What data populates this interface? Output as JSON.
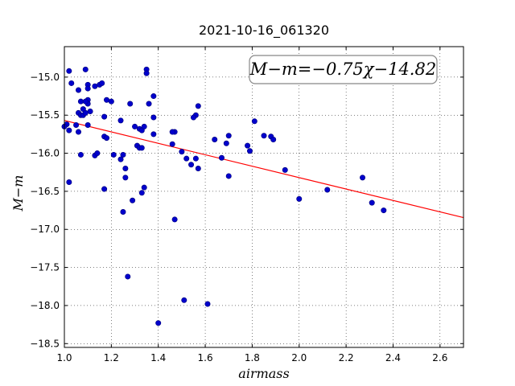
{
  "chart_data": {
    "type": "scatter",
    "title": "2021-10-16_061320",
    "xlabel": "airmass",
    "ylabel": "M−m",
    "xlim": [
      1.0,
      2.7
    ],
    "ylim": [
      -18.55,
      -14.6
    ],
    "y_inverted": true,
    "grid": true,
    "x_ticks": [
      1.0,
      1.2,
      1.4,
      1.6,
      1.8,
      2.0,
      2.2,
      2.4,
      2.6
    ],
    "x_tick_labels": [
      "1.0",
      "1.2",
      "1.4",
      "1.6",
      "1.8",
      "2.0",
      "2.2",
      "2.4",
      "2.6"
    ],
    "y_ticks": [
      -15.0,
      -15.5,
      -16.0,
      -16.5,
      -17.0,
      -17.5,
      -18.0,
      -18.5
    ],
    "y_tick_labels": [
      "−15.0",
      "−15.5",
      "−16.0",
      "−16.5",
      "−17.0",
      "−17.5",
      "−18.0",
      "−18.5"
    ],
    "annotation": "M−m=−0.75χ−14.82",
    "point_color": "#0000cc",
    "fit_color": "#ff0000",
    "fit": {
      "slope": -0.75,
      "intercept": -14.82
    },
    "points": [
      [
        1.02,
        -14.92
      ],
      [
        1.09,
        -14.9
      ],
      [
        1.15,
        -15.1
      ],
      [
        1.16,
        -15.08
      ],
      [
        1.03,
        -15.08
      ],
      [
        1.35,
        -14.9
      ],
      [
        1.35,
        -14.95
      ],
      [
        1.1,
        -15.1
      ],
      [
        1.1,
        -15.15
      ],
      [
        1.06,
        -15.17
      ],
      [
        1.13,
        -15.12
      ],
      [
        1.38,
        -15.25
      ],
      [
        1.1,
        -15.3
      ],
      [
        1.1,
        -15.35
      ],
      [
        1.07,
        -15.32
      ],
      [
        1.09,
        -15.32
      ],
      [
        1.18,
        -15.3
      ],
      [
        1.2,
        -15.32
      ],
      [
        1.28,
        -15.35
      ],
      [
        1.36,
        -15.35
      ],
      [
        1.57,
        -15.38
      ],
      [
        1.08,
        -15.42
      ],
      [
        1.11,
        -15.45
      ],
      [
        1.06,
        -15.47
      ],
      [
        1.07,
        -15.5
      ],
      [
        1.08,
        -15.5
      ],
      [
        1.09,
        -15.47
      ],
      [
        1.17,
        -15.52
      ],
      [
        1.38,
        -15.53
      ],
      [
        1.56,
        -15.5
      ],
      [
        1.55,
        -15.53
      ],
      [
        1.24,
        -15.57
      ],
      [
        1.01,
        -15.62
      ],
      [
        1.0,
        -15.65
      ],
      [
        1.05,
        -15.63
      ],
      [
        1.1,
        -15.63
      ],
      [
        1.02,
        -15.7
      ],
      [
        1.06,
        -15.72
      ],
      [
        1.3,
        -15.65
      ],
      [
        1.32,
        -15.68
      ],
      [
        1.33,
        -15.7
      ],
      [
        1.34,
        -15.65
      ],
      [
        1.47,
        -15.72
      ],
      [
        1.46,
        -15.72
      ],
      [
        1.38,
        -15.75
      ],
      [
        1.17,
        -15.78
      ],
      [
        1.18,
        -15.8
      ],
      [
        1.81,
        -15.58
      ],
      [
        1.7,
        -15.77
      ],
      [
        1.64,
        -15.82
      ],
      [
        1.69,
        -15.87
      ],
      [
        1.85,
        -15.77
      ],
      [
        1.88,
        -15.78
      ],
      [
        1.89,
        -15.82
      ],
      [
        1.78,
        -15.9
      ],
      [
        1.79,
        -15.97
      ],
      [
        1.31,
        -15.9
      ],
      [
        1.32,
        -15.93
      ],
      [
        1.33,
        -15.93
      ],
      [
        1.46,
        -15.88
      ],
      [
        1.5,
        -15.98
      ],
      [
        1.07,
        -16.02
      ],
      [
        1.13,
        -16.03
      ],
      [
        1.14,
        -16.0
      ],
      [
        1.21,
        -16.02
      ],
      [
        1.25,
        -16.02
      ],
      [
        1.24,
        -16.08
      ],
      [
        1.52,
        -16.07
      ],
      [
        1.56,
        -16.07
      ],
      [
        1.67,
        -16.06
      ],
      [
        1.54,
        -16.15
      ],
      [
        1.57,
        -16.2
      ],
      [
        1.26,
        -16.2
      ],
      [
        1.94,
        -16.22
      ],
      [
        1.7,
        -16.3
      ],
      [
        1.26,
        -16.32
      ],
      [
        2.27,
        -16.32
      ],
      [
        1.02,
        -16.38
      ],
      [
        1.34,
        -16.45
      ],
      [
        1.17,
        -16.47
      ],
      [
        1.33,
        -16.52
      ],
      [
        2.12,
        -16.48
      ],
      [
        2.0,
        -16.6
      ],
      [
        1.29,
        -16.62
      ],
      [
        2.31,
        -16.65
      ],
      [
        1.25,
        -16.77
      ],
      [
        2.36,
        -16.75
      ],
      [
        1.47,
        -16.87
      ],
      [
        1.27,
        -17.62
      ],
      [
        1.51,
        -17.93
      ],
      [
        1.61,
        -17.98
      ],
      [
        1.4,
        -18.23
      ]
    ]
  }
}
